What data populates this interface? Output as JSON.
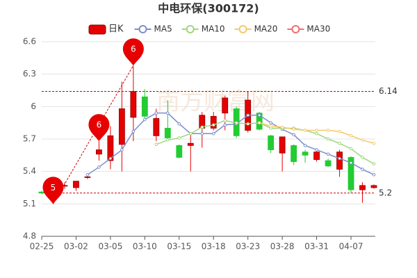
{
  "chart_data": {
    "type": "candlestick",
    "title": "中电环保(300172)",
    "watermark": "南方财富网",
    "categories": [
      "02-25",
      null,
      null,
      "03-02",
      null,
      null,
      "03-05",
      null,
      null,
      "03-10",
      null,
      null,
      "03-15",
      null,
      null,
      "03-18",
      null,
      null,
      "03-23",
      null,
      null,
      "03-28",
      null,
      null,
      "03-31",
      null,
      null,
      "04-07",
      null,
      null
    ],
    "candles": {
      "name": "日K",
      "up_color": "#e60000",
      "down_color": "#22cc33",
      "open": [
        5.21,
        5.22,
        5.27,
        5.25,
        5.35,
        5.56,
        5.5,
        5.65,
        5.9,
        6.09,
        5.73,
        5.8,
        5.64,
        5.64,
        5.8,
        5.8,
        5.94,
        5.98,
        5.78,
        5.94,
        5.73,
        5.57,
        5.64,
        5.58,
        5.51,
        5.5,
        5.42,
        5.53,
        5.23,
        5.25
      ],
      "high": [
        5.22,
        5.28,
        5.3,
        5.31,
        5.38,
        5.68,
        5.82,
        6.23,
        6.38,
        6.16,
        5.98,
        6.06,
        5.65,
        5.76,
        5.95,
        5.95,
        6.1,
        6.0,
        6.14,
        5.95,
        5.74,
        5.72,
        5.65,
        5.6,
        5.6,
        5.52,
        5.6,
        5.54,
        5.3,
        5.28
      ],
      "low": [
        5.19,
        5.1,
        5.24,
        5.22,
        5.33,
        5.5,
        5.42,
        5.4,
        5.68,
        5.89,
        5.68,
        5.7,
        5.52,
        5.4,
        5.62,
        5.78,
        5.78,
        5.71,
        5.76,
        5.78,
        5.57,
        5.4,
        5.46,
        5.48,
        5.49,
        5.44,
        5.35,
        5.2,
        5.11,
        5.24
      ],
      "close": [
        5.2,
        5.26,
        5.27,
        5.31,
        5.35,
        5.6,
        5.73,
        5.98,
        6.14,
        5.91,
        5.89,
        5.71,
        5.53,
        5.66,
        5.92,
        5.91,
        6.08,
        5.73,
        6.06,
        5.79,
        5.6,
        5.72,
        5.49,
        5.55,
        5.58,
        5.45,
        5.58,
        5.23,
        5.27,
        5.27
      ]
    },
    "series": [
      {
        "name": "MA5",
        "color": "#7b8ecc",
        "values": [
          null,
          null,
          null,
          null,
          5.37,
          5.44,
          5.52,
          5.6,
          5.77,
          5.88,
          5.94,
          5.94,
          5.84,
          5.75,
          5.75,
          5.75,
          5.83,
          5.84,
          5.92,
          5.92,
          5.85,
          5.79,
          5.74,
          5.64,
          5.6,
          5.56,
          5.52,
          5.48,
          5.42,
          5.37
        ]
      },
      {
        "name": "MA10",
        "color": "#9fd67f",
        "values": [
          null,
          null,
          null,
          null,
          null,
          null,
          null,
          null,
          null,
          null,
          5.65,
          5.69,
          5.71,
          5.75,
          5.81,
          5.83,
          5.87,
          5.85,
          5.84,
          5.85,
          5.8,
          5.8,
          5.8,
          5.78,
          5.75,
          5.7,
          5.66,
          5.61,
          5.53,
          5.47
        ]
      },
      {
        "name": "MA20",
        "color": "#f5c96a",
        "values": [
          null,
          null,
          null,
          null,
          null,
          null,
          null,
          null,
          null,
          null,
          null,
          null,
          null,
          null,
          null,
          null,
          null,
          null,
          null,
          5.85,
          5.82,
          5.81,
          5.79,
          5.78,
          5.78,
          5.78,
          5.77,
          5.73,
          5.69,
          5.66
        ]
      },
      {
        "name": "MA30",
        "color": "#ef6f6f",
        "values": [
          null,
          null,
          null,
          null,
          null,
          null,
          null,
          null,
          null,
          null,
          null,
          null,
          null,
          null,
          null,
          null,
          null,
          null,
          null,
          null,
          null,
          null,
          null,
          null,
          null,
          null,
          null,
          null,
          null,
          null
        ]
      }
    ],
    "ref_lines": [
      6.14,
      5.2
    ],
    "annotations": [
      {
        "label": "5",
        "value": 5.1
      },
      {
        "label": "6",
        "value": 5.68
      },
      {
        "label": "6",
        "value": 6.38
      }
    ],
    "ylim": [
      4.8,
      6.6
    ],
    "yticks": [
      6.6,
      6.3,
      6,
      5.7,
      5.4,
      5.1,
      4.8
    ],
    "grid": true
  }
}
